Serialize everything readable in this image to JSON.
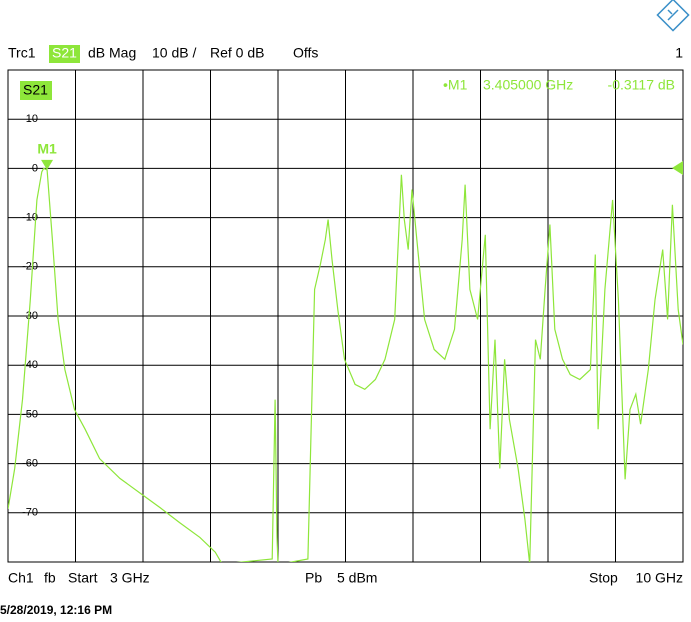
{
  "header": {
    "trace": "Trc1",
    "format": "dB Mag",
    "scale": "10 dB /",
    "ref": "Ref 0 dB",
    "offs": "Offs",
    "channel_no": "1"
  },
  "chart_data": {
    "type": "line",
    "x": [
      3.0,
      3.07,
      3.15,
      3.23,
      3.3,
      3.35,
      3.37,
      3.405,
      3.46,
      3.52,
      3.59,
      3.69,
      3.8,
      3.95,
      4.16,
      4.37,
      4.58,
      4.78,
      4.99,
      5.15,
      5.22,
      5.74,
      5.77,
      5.79,
      5.8,
      6.11,
      6.18,
      6.24,
      6.29,
      6.32,
      6.36,
      6.42,
      6.49,
      6.6,
      6.7,
      6.81,
      6.91,
      7.01,
      7.08,
      7.11,
      7.15,
      7.19,
      7.25,
      7.32,
      7.42,
      7.53,
      7.63,
      7.71,
      7.74,
      7.79,
      7.87,
      7.95,
      8.0,
      8.05,
      8.1,
      8.15,
      8.2,
      8.29,
      8.36,
      8.41,
      8.47,
      8.52,
      8.57,
      8.62,
      8.67,
      8.75,
      8.83,
      8.93,
      9.04,
      9.09,
      9.12,
      9.19,
      9.27,
      9.33,
      9.4,
      9.45,
      9.51,
      9.56,
      9.64,
      9.71,
      9.79,
      9.84,
      9.89,
      9.95,
      10.0
    ],
    "series": [
      {
        "name": "S21",
        "color": "#8ee63a",
        "values": [
          -69.2,
          -61,
          -47,
          -27,
          -6.4,
          -0.7,
          0,
          -0.3117,
          -14.5,
          -30.7,
          -40.9,
          -49,
          -53,
          -59,
          -63,
          -66,
          -69,
          -72,
          -75,
          -78,
          -80.4,
          -79.4,
          -47,
          -75,
          -80.5,
          -79.4,
          -24.6,
          -19.5,
          -14.5,
          -10.4,
          -18.5,
          -28.7,
          -38.8,
          -43.9,
          -44.9,
          -42.9,
          -38.8,
          -30.7,
          -1.3,
          -10.4,
          -16.5,
          -4.3,
          -16.5,
          -30.7,
          -36.8,
          -38.8,
          -32.7,
          -14.5,
          -3.3,
          -24.6,
          -30.7,
          -13.5,
          -53,
          -34.8,
          -61,
          -38.8,
          -51,
          -61,
          -71.3,
          -80.4,
          -34.8,
          -38.8,
          -24.6,
          -11.4,
          -32.7,
          -38.8,
          -41.9,
          -42.9,
          -40.9,
          -17.5,
          -53,
          -24.6,
          -6.4,
          -26.7,
          -63.2,
          -49,
          -45.9,
          -52,
          -40.9,
          -26.7,
          -16.5,
          -30.7,
          -7.4,
          -28.7,
          -35.8
        ]
      }
    ],
    "xlim": [
      3,
      10
    ],
    "ylim": [
      -80,
      20
    ],
    "yticks": [
      10,
      0,
      -10,
      -20,
      -30,
      -40,
      -50,
      -60,
      -70
    ],
    "grid": true,
    "marker": {
      "name": "M1",
      "x": 3.405,
      "y": -0.3117
    },
    "readout": [
      "•M1",
      "3.405000 GHz",
      "-0.3117 dB"
    ]
  },
  "footer": {
    "channel": "Ch1",
    "mode": "fb",
    "start_label": "Start",
    "start": "3 GHz",
    "power_label": "Pb",
    "power": "5 dBm",
    "stop_label": "Stop",
    "stop": "10 GHz"
  },
  "timestamp": "5/28/2019, 12:16 PM"
}
